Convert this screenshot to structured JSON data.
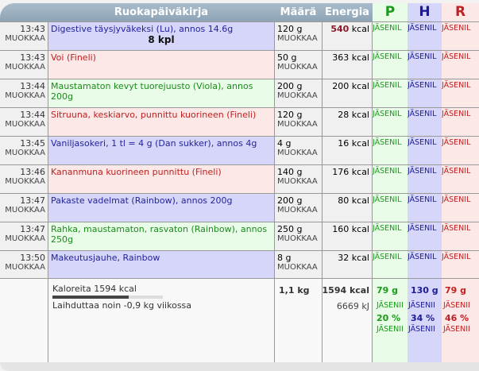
{
  "header": {
    "title": "Ruokapäiväkirja",
    "amount": "Määrä",
    "energy": "Energia",
    "p": "P",
    "h": "H",
    "r": "R"
  },
  "colors": {
    "p": "#1a9a1a",
    "h": "#1a1a9a",
    "r": "#c02020"
  },
  "rows": [
    {
      "time": "13:43",
      "edit": "MUOKKAA",
      "name": "Digestive täysjyväkeksi (Lu), annos 14.6g",
      "extra": "8 kpl",
      "amount": "120 g",
      "amount_edit": "MUOKKAA",
      "energy_val": "540",
      "energy_unit": "kcal",
      "p": "JÄSENIL",
      "h": "JÄSENIL",
      "r": "JÄSENIL",
      "color": "blue"
    },
    {
      "time": "13:43",
      "edit": "MUOKKAA",
      "name": "Voi (Fineli)",
      "amount": "50 g",
      "amount_edit": "MUOKKAA",
      "energy": "363 kcal",
      "p": "JÄSENIL",
      "h": "JÄSENIL",
      "r": "JÄSENIL",
      "color": "red"
    },
    {
      "time": "13:44",
      "edit": "MUOKKAA",
      "name": "Maustamaton kevyt tuorejuusto (Viola), annos 200g",
      "amount": "200 g",
      "amount_edit": "MUOKKAA",
      "energy": "200 kcal",
      "p": "JÄSENIL",
      "h": "JÄSENIL",
      "r": "JÄSENIL",
      "color": "green"
    },
    {
      "time": "13:44",
      "edit": "MUOKKAA",
      "name": "Sitruuna, keskiarvo, punnittu kuorineen (Fineli)",
      "amount": "120 g",
      "amount_edit": "MUOKKAA",
      "energy": "28 kcal",
      "p": "JÄSENIL",
      "h": "JÄSENIL",
      "r": "JÄSENIL",
      "color": "red"
    },
    {
      "time": "13:45",
      "edit": "MUOKKAA",
      "name": "Vaniljasokeri, 1 tl = 4 g (Dan sukker), annos 4g",
      "amount": "4 g",
      "amount_edit": "MUOKKAA",
      "energy": "16 kcal",
      "p": "JÄSENIL",
      "h": "JÄSENIL",
      "r": "JÄSENIL",
      "color": "blue"
    },
    {
      "time": "13:46",
      "edit": "MUOKKAA",
      "name": "Kananmuna kuorineen punnittu (Fineli)",
      "amount": "140 g",
      "amount_edit": "MUOKKAA",
      "energy": "176 kcal",
      "p": "JÄSENIL",
      "h": "JÄSENIL",
      "r": "JÄSENIL",
      "color": "red"
    },
    {
      "time": "13:47",
      "edit": "MUOKKAA",
      "name": "Pakaste vadelmat (Rainbow), annos 200g",
      "amount": "200 g",
      "amount_edit": "MUOKKAA",
      "energy": "80 kcal",
      "p": "JÄSENIL",
      "h": "JÄSENIL",
      "r": "JÄSENIL",
      "color": "blue"
    },
    {
      "time": "13:47",
      "edit": "MUOKKAA",
      "name": "Rahka, maustamaton, rasvaton (Rainbow), annos 250g",
      "amount": "250 g",
      "amount_edit": "MUOKKAA",
      "energy": "160 kcal",
      "p": "JÄSENIL",
      "h": "JÄSENIL",
      "r": "JÄSENIL",
      "color": "green"
    },
    {
      "time": "13:50",
      "edit": "MUOKKAA",
      "name": "Makeutusjauhe, Rainbow",
      "amount": "8 g",
      "amount_edit": "MUOKKAA",
      "energy": "32 kcal",
      "p": "JÄSENIL",
      "h": "JÄSENIL",
      "r": "JÄSENIL",
      "color": "blue"
    }
  ],
  "footer": {
    "calories": "Kaloreita 1594 kcal",
    "calorie_progress": 0.69,
    "weight_note": "Laihduttaa noin -0,9 kg viikossa",
    "total_amount": "1,1 kg",
    "total_kcal": "1594 kcal",
    "total_kj": "6669 kJ",
    "p": {
      "grams": "79 g",
      "l1": "JÄSENII",
      "pct": "20 %",
      "l2": "JÄSENII"
    },
    "h": {
      "grams": "130 g",
      "l1": "JÄSENII",
      "pct": "34 %",
      "l2": "JÄSENII"
    },
    "r": {
      "grams": "79 g",
      "l1": "JÄSENII",
      "pct": "46 %",
      "l2": "JÄSENII"
    }
  }
}
